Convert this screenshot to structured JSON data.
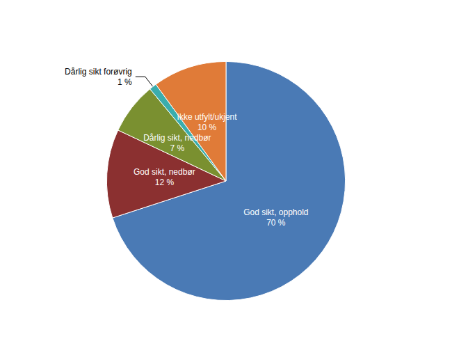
{
  "chart_data": {
    "type": "pie",
    "categories": [
      "God sikt, opphold",
      "God sikt, nedbør",
      "Dårlig sikt, nedbør",
      "Dårlig sikt forøvrig",
      "Ikke utfylt/ukjent"
    ],
    "values": [
      70,
      12,
      7,
      1,
      10
    ],
    "value_labels": [
      "70 %",
      "12 %",
      "7 %",
      "1 %",
      "10 %"
    ],
    "colors": [
      "#4a7ab5",
      "#8b3030",
      "#7a9030",
      "#3aadad",
      "#e07b38"
    ],
    "data_labels": true
  }
}
